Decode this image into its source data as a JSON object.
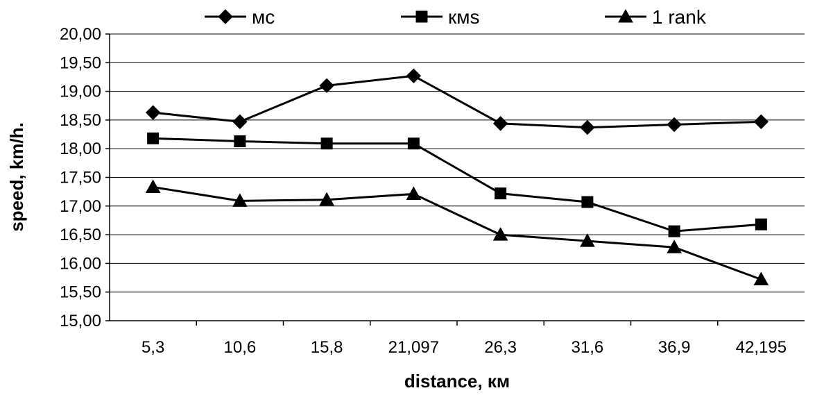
{
  "chart_data": {
    "type": "line",
    "categories": [
      "5,3",
      "10,6",
      "15,8",
      "21,097",
      "26,3",
      "31,6",
      "36,9",
      "42,195"
    ],
    "series": [
      {
        "name": "мс",
        "marker": "diamond",
        "values": [
          18.63,
          18.47,
          19.1,
          19.27,
          18.44,
          18.37,
          18.42,
          18.47
        ]
      },
      {
        "name": "кмs",
        "marker": "square",
        "values": [
          18.18,
          18.13,
          18.09,
          18.09,
          17.22,
          17.07,
          16.56,
          16.68
        ]
      },
      {
        "name": "1 rank",
        "marker": "triangle",
        "values": [
          17.33,
          17.09,
          17.11,
          17.21,
          16.5,
          16.39,
          16.28,
          15.72
        ]
      }
    ],
    "y_ticks": [
      "15,00",
      "15,50",
      "16,00",
      "16,50",
      "17,00",
      "17,50",
      "18,00",
      "18,50",
      "19,00",
      "19,50",
      "20,00"
    ],
    "ylim": [
      15,
      20
    ],
    "xlabel": "distance, км",
    "ylabel": "speed, km/h.",
    "grid": true,
    "legend_position": "top"
  },
  "colors": {
    "line": "#000000",
    "grid": "#000000",
    "background": "#ffffff"
  }
}
